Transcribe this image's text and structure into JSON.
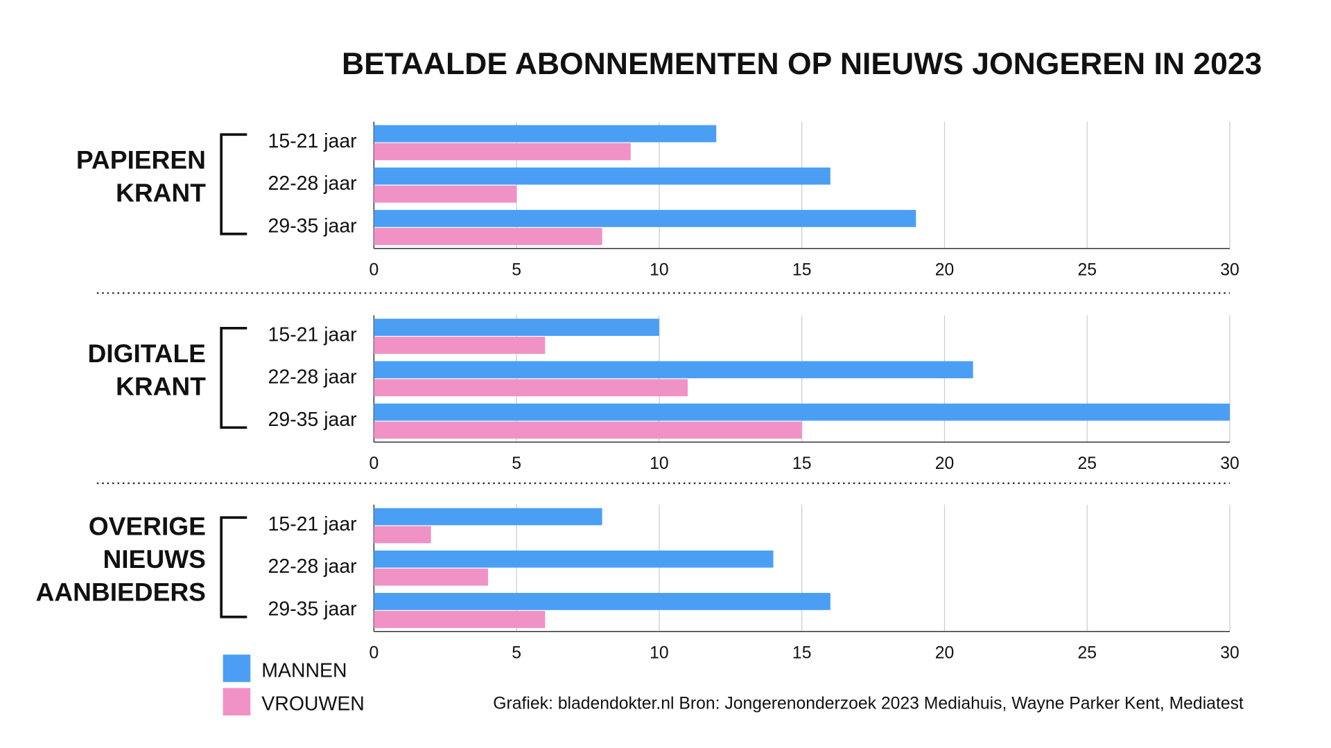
{
  "title": "BETAALDE ABONNEMENTEN OP NIEUWS JONGEREN IN 2023",
  "source": "Grafiek: bladendokter.nl  Bron: Jongerenonderzoek 2023 Mediahuis, Wayne Parker Kent, Mediatest",
  "chart_data": [
    {
      "type": "bar",
      "orientation": "horizontal",
      "group": [
        "PAPIEREN",
        "KRANT"
      ],
      "categories": [
        "15-21 jaar",
        "22-28 jaar",
        "29-35 jaar"
      ],
      "series": [
        {
          "name": "MANNEN",
          "color": "#4a9ff5",
          "values": [
            12,
            16,
            19
          ]
        },
        {
          "name": "VROUWEN",
          "color": "#f092c6",
          "values": [
            9,
            5,
            8
          ]
        }
      ],
      "xlim": [
        0,
        30
      ],
      "xticks": [
        0,
        5,
        10,
        15,
        20,
        25,
        30
      ],
      "grid": true
    },
    {
      "type": "bar",
      "orientation": "horizontal",
      "group": [
        "DIGITALE",
        "KRANT"
      ],
      "categories": [
        "15-21 jaar",
        "22-28 jaar",
        "29-35 jaar"
      ],
      "series": [
        {
          "name": "MANNEN",
          "color": "#4a9ff5",
          "values": [
            10,
            21,
            30
          ]
        },
        {
          "name": "VROUWEN",
          "color": "#f092c6",
          "values": [
            6,
            11,
            15
          ]
        }
      ],
      "xlim": [
        0,
        30
      ],
      "xticks": [
        0,
        5,
        10,
        15,
        20,
        25,
        30
      ],
      "grid": true
    },
    {
      "type": "bar",
      "orientation": "horizontal",
      "group": [
        "OVERIGE",
        "NIEUWS",
        "AANBIEDERS"
      ],
      "categories": [
        "15-21 jaar",
        "22-28 jaar",
        "29-35 jaar"
      ],
      "series": [
        {
          "name": "MANNEN",
          "color": "#4a9ff5",
          "values": [
            8,
            14,
            16
          ]
        },
        {
          "name": "VROUWEN",
          "color": "#f092c6",
          "values": [
            2,
            4,
            6
          ]
        }
      ],
      "xlim": [
        0,
        30
      ],
      "xticks": [
        0,
        5,
        10,
        15,
        20,
        25,
        30
      ],
      "grid": true
    }
  ]
}
